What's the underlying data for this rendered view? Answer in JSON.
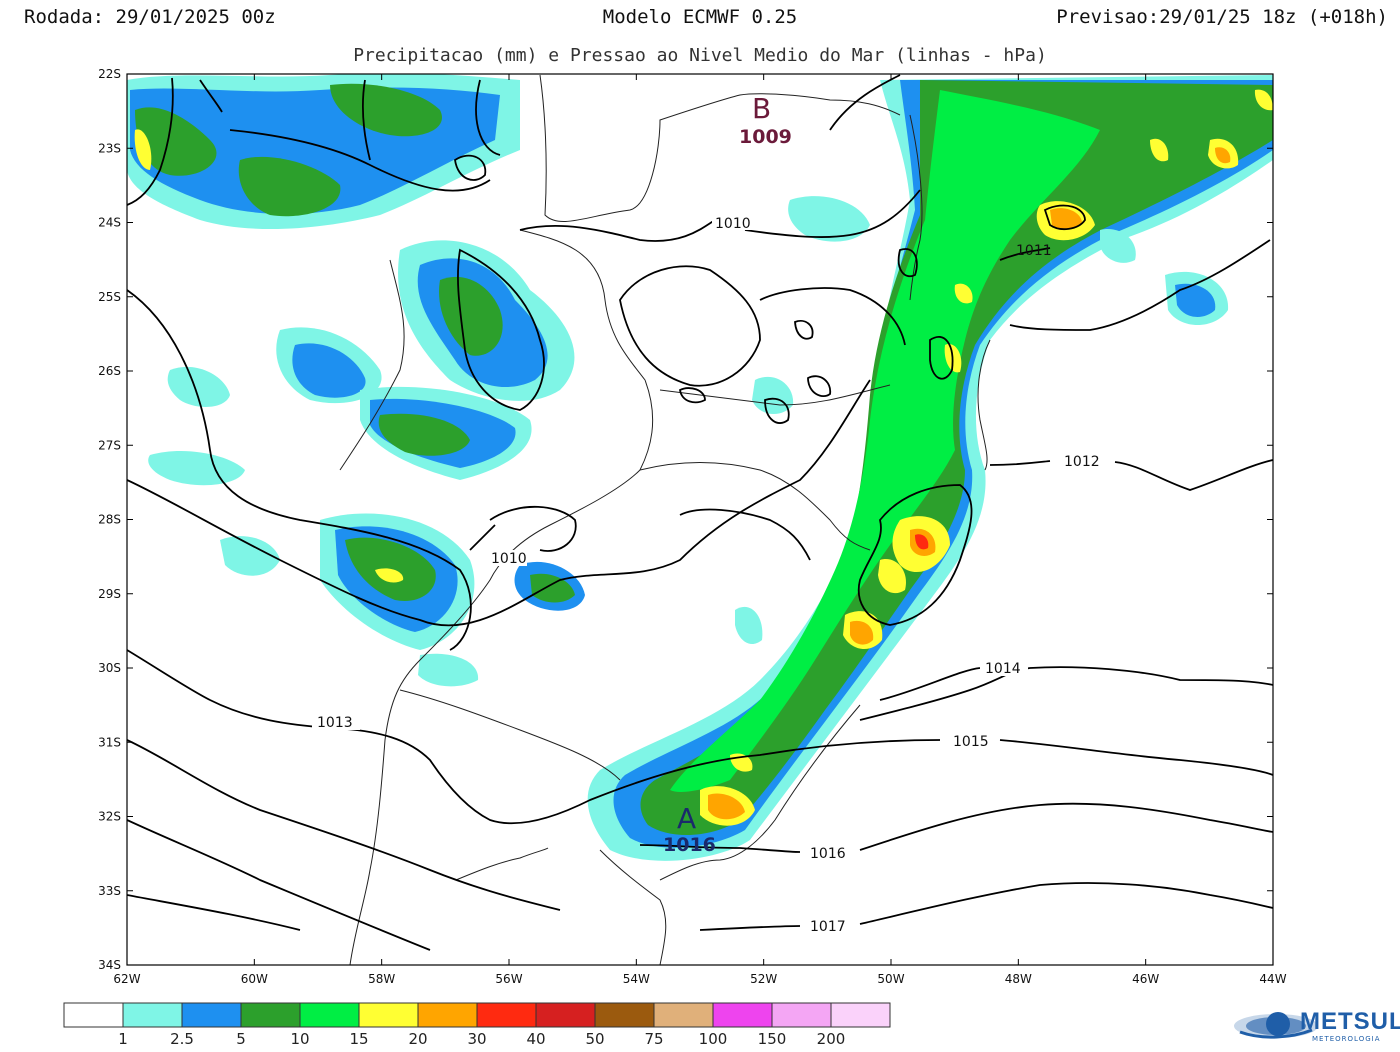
{
  "header": {
    "run": "Rodada: 29/01/2025 00z",
    "model": "Modelo ECMWF 0.25",
    "forecast": "Previsao:29/01/25 18z (+018h)",
    "subtitle": "Precipitacao (mm) e Pressao ao Nivel Medio do Mar (linhas - hPa)"
  },
  "map": {
    "lon_range": [
      -62,
      -44
    ],
    "lat_range": [
      -34,
      -22
    ],
    "lon_ticks": [
      "62W",
      "60W",
      "58W",
      "56W",
      "54W",
      "52W",
      "50W",
      "48W",
      "46W",
      "44W"
    ],
    "lat_ticks": [
      "22S",
      "23S",
      "24S",
      "25S",
      "26S",
      "27S",
      "28S",
      "29S",
      "30S",
      "31S",
      "32S",
      "33S",
      "34S"
    ],
    "isobar_labels": [
      "1009",
      "1010",
      "1010",
      "1011",
      "1012",
      "1013",
      "1014",
      "1015",
      "1016",
      "1017"
    ],
    "centers": [
      {
        "letter": "B",
        "value": "1009",
        "color": "#6b1a3a"
      },
      {
        "letter": "A",
        "value": "1016",
        "color": "#1a2a6b"
      }
    ]
  },
  "legend": {
    "labels": [
      "1",
      "2.5",
      "5",
      "10",
      "15",
      "20",
      "30",
      "40",
      "50",
      "75",
      "100",
      "150",
      "200"
    ],
    "colors": [
      "#ffffff",
      "#7ff5e6",
      "#1e90f0",
      "#2ca02c",
      "#00ee44",
      "#ffff33",
      "#ffa500",
      "#ff2a10",
      "#d62020",
      "#9b5a0e",
      "#e0b07a",
      "#ee44ee",
      "#f4a6f4",
      "#fad2fa"
    ]
  },
  "logo": {
    "name": "METSUL",
    "tagline": "METEOROLOGIA"
  }
}
